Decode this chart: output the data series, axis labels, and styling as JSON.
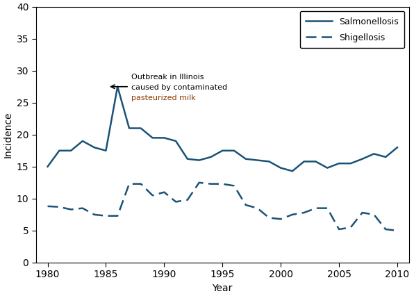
{
  "years": [
    1980,
    1981,
    1982,
    1983,
    1984,
    1985,
    1986,
    1987,
    1988,
    1989,
    1990,
    1991,
    1992,
    1993,
    1994,
    1995,
    1996,
    1997,
    1998,
    1999,
    2000,
    2001,
    2002,
    2003,
    2004,
    2005,
    2006,
    2007,
    2008,
    2009,
    2010
  ],
  "salmonellosis": [
    15.0,
    17.5,
    17.5,
    19.0,
    18.0,
    17.5,
    27.5,
    21.0,
    21.0,
    19.5,
    19.5,
    19.0,
    16.2,
    16.0,
    16.5,
    17.5,
    17.5,
    16.2,
    16.0,
    15.8,
    14.8,
    14.3,
    15.8,
    15.8,
    14.8,
    15.5,
    15.5,
    16.2,
    17.0,
    16.5,
    18.0
  ],
  "shigellosis": [
    8.8,
    8.7,
    8.3,
    8.5,
    7.5,
    7.3,
    7.3,
    12.3,
    12.3,
    10.5,
    11.0,
    9.5,
    9.8,
    12.5,
    12.3,
    12.3,
    12.0,
    9.0,
    8.5,
    7.0,
    6.8,
    7.5,
    7.8,
    8.5,
    8.5,
    5.2,
    5.5,
    7.8,
    7.5,
    5.2,
    5.0
  ],
  "line_color": "#1a5276",
  "annotation_line1": "Outbreak in Illinois",
  "annotation_line2": "caused by contaminated",
  "annotation_line3": "pasteurized milk",
  "annotation_line3_color": "#8B3A00",
  "annotation_text_color": "#000000",
  "ylabel": "Incidence",
  "xlabel": "Year",
  "ylim": [
    0,
    40
  ],
  "xlim": [
    1979,
    2011
  ],
  "yticks": [
    0,
    5,
    10,
    15,
    20,
    25,
    30,
    35,
    40
  ],
  "xticks": [
    1980,
    1985,
    1990,
    1995,
    2000,
    2005,
    2010
  ]
}
